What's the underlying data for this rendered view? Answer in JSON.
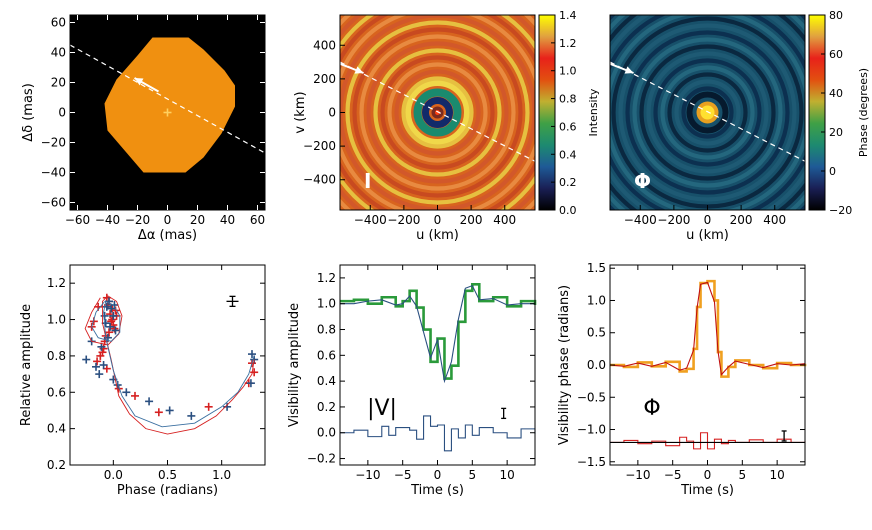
{
  "chart_data": [
    {
      "id": "shape",
      "type": "heatmap",
      "xlabel": "Δα (mas)",
      "ylabel": "Δδ (mas)",
      "xlim": [
        -65,
        65
      ],
      "ylim": [
        -65,
        65
      ],
      "xticks": [
        "−60",
        "−40",
        "−20",
        "0",
        "20",
        "40",
        "60"
      ],
      "yticks": [
        "−60",
        "−40",
        "−20",
        "0",
        "20",
        "40",
        "60"
      ],
      "background": "#000000",
      "fill": "#f09010",
      "outline": [
        [
          -10,
          50
        ],
        [
          14,
          50
        ],
        [
          24,
          42
        ],
        [
          38,
          28
        ],
        [
          45,
          18
        ],
        [
          45,
          4
        ],
        [
          36,
          -14
        ],
        [
          24,
          -30
        ],
        [
          12,
          -40
        ],
        [
          -16,
          -40
        ],
        [
          -28,
          -26
        ],
        [
          -40,
          -12
        ],
        [
          -42,
          6
        ],
        [
          -34,
          22
        ],
        [
          -20,
          38
        ]
      ],
      "direction_line": [
        [
          -65,
          45
        ],
        [
          65,
          -27
        ]
      ],
      "arrow": {
        "from": [
          -6,
          14
        ],
        "to": [
          -22,
          23
        ]
      },
      "center": [
        0,
        0
      ]
    },
    {
      "id": "intensity",
      "type": "heatmap",
      "xlabel": "u (km)",
      "ylabel": "v (km)",
      "xlim": [
        -580,
        580
      ],
      "ylim": [
        -580,
        580
      ],
      "xticks": [
        "−400",
        "−200",
        "0",
        "200",
        "400"
      ],
      "yticks": [
        "−400",
        "−200",
        "0",
        "200",
        "400"
      ],
      "label": "I",
      "colorbar": {
        "label": "Intensity",
        "min": 0.0,
        "max": 1.4,
        "ticks": [
          "0.0",
          "0.2",
          "0.4",
          "0.6",
          "0.8",
          "1.0",
          "1.2",
          "1.4"
        ]
      },
      "colormap": [
        "#000000",
        "#1a1f55",
        "#1e5a96",
        "#1d8a70",
        "#3fa046",
        "#c0b030",
        "#e25010",
        "#e8221a",
        "#e0a040",
        "#ffff00"
      ],
      "direction_line": [
        [
          -580,
          300
        ],
        [
          580,
          -290
        ]
      ],
      "arrow": {
        "from": [
          -580,
          290
        ],
        "to": [
          -440,
          235
        ]
      }
    },
    {
      "id": "phase",
      "type": "heatmap",
      "xlabel": "u (km)",
      "ylabel": "",
      "xlim": [
        -580,
        580
      ],
      "ylim": [
        -580,
        580
      ],
      "xticks": [
        "−400",
        "−200",
        "0",
        "200",
        "400"
      ],
      "label": "Φ",
      "colorbar": {
        "label": "Phase (degrees)",
        "min": -20,
        "max": 80,
        "ticks": [
          "−20",
          "0",
          "20",
          "40",
          "60",
          "80"
        ]
      },
      "colormap": [
        "#000000",
        "#1a1f55",
        "#1e5a96",
        "#1d8a70",
        "#3fa046",
        "#c0b030",
        "#e25010",
        "#e8221a",
        "#e0a040",
        "#ffff00"
      ],
      "direction_line": [
        [
          -580,
          300
        ],
        [
          580,
          -290
        ]
      ],
      "arrow": {
        "from": [
          -580,
          290
        ],
        "to": [
          -440,
          235
        ]
      }
    },
    {
      "id": "amp_phase",
      "type": "scatter",
      "xlabel": "Phase (radians)",
      "ylabel": "Relative amplitude",
      "xlim": [
        -0.4,
        1.4
      ],
      "ylim": [
        0.2,
        1.3
      ],
      "xticks": [
        0.0,
        0.5,
        1.0
      ],
      "yticks": [
        0.2,
        0.4,
        0.6,
        0.8,
        1.0,
        1.2
      ],
      "series": [
        {
          "name": "observed-red",
          "color": "#d62020",
          "x": [
            -0.05,
            -0.03,
            -0.01,
            0.0,
            -0.04,
            0.02,
            -0.06,
            -0.02,
            0.01,
            -0.08,
            -0.1,
            -0.15,
            -0.2,
            -0.12,
            -0.06,
            -0.01,
            -0.04,
            0.03,
            -0.07,
            -0.09,
            -0.18,
            -0.14,
            0.05,
            0.2,
            0.42,
            0.88,
            1.25,
            1.3,
            1.28
          ],
          "y": [
            1.08,
            1.03,
            1.0,
            0.97,
            0.93,
            1.05,
            1.12,
            0.99,
            0.95,
            0.88,
            0.82,
            0.77,
            0.96,
            0.8,
            0.73,
            1.06,
            1.1,
            1.02,
            0.91,
            0.84,
            0.99,
            1.07,
            0.62,
            0.58,
            0.49,
            0.52,
            0.65,
            0.71,
            0.76
          ]
        },
        {
          "name": "observed-blue",
          "color": "#2a4f80",
          "x": [
            -0.04,
            -0.02,
            0.0,
            -0.07,
            0.02,
            -0.05,
            -0.11,
            -0.16,
            -0.25,
            -0.13,
            -0.09,
            -0.06,
            -0.03,
            0.01,
            -0.08,
            -0.2,
            0.0,
            0.04,
            0.12,
            0.33,
            0.52,
            0.72,
            1.05,
            1.27,
            1.3,
            1.28
          ],
          "y": [
            1.1,
            1.06,
            1.02,
            0.98,
            0.94,
            0.9,
            0.85,
            0.74,
            0.78,
            0.7,
            0.75,
            1.07,
            0.96,
            1.08,
            1.02,
            0.88,
            0.67,
            0.64,
            0.6,
            0.55,
            0.5,
            0.47,
            0.52,
            0.65,
            0.78,
            0.81
          ]
        },
        {
          "name": "model-red",
          "color": "#d62020",
          "x": [
            -0.12,
            -0.2,
            -0.26,
            -0.2,
            -0.05,
            0.05,
            0.08,
            0.03,
            -0.05,
            -0.1,
            -0.1,
            -0.02,
            0.05,
            0.15,
            0.3,
            0.5,
            0.75,
            0.95,
            1.1,
            1.2,
            1.28,
            1.3
          ],
          "y": [
            1.12,
            1.04,
            0.95,
            0.88,
            0.86,
            0.92,
            1.02,
            1.1,
            1.13,
            1.1,
            0.98,
            0.78,
            0.58,
            0.48,
            0.4,
            0.37,
            0.4,
            0.47,
            0.56,
            0.63,
            0.7,
            0.78
          ]
        },
        {
          "name": "model-blue",
          "color": "#3a6fa0",
          "x": [
            -0.08,
            -0.16,
            -0.2,
            -0.14,
            -0.02,
            0.06,
            0.06,
            0.0,
            -0.07,
            -0.09,
            -0.07,
            0.0,
            0.08,
            0.2,
            0.45,
            0.75,
            1.0,
            1.15,
            1.25,
            1.3
          ],
          "y": [
            1.1,
            1.04,
            0.96,
            0.9,
            0.88,
            0.93,
            1.02,
            1.08,
            1.1,
            1.04,
            0.9,
            0.72,
            0.58,
            0.47,
            0.41,
            0.43,
            0.52,
            0.6,
            0.7,
            0.8
          ]
        }
      ],
      "error_marker": {
        "x": 1.1,
        "y": 1.1
      }
    },
    {
      "id": "vis_amp",
      "type": "line",
      "xlabel": "Time (s)",
      "ylabel": "Visibility amplitude",
      "xlim": [
        -14,
        14
      ],
      "ylim": [
        -0.25,
        1.3
      ],
      "xticks": [
        -10,
        -5,
        0,
        5,
        10
      ],
      "yticks": [
        -0.2,
        0.0,
        0.2,
        0.4,
        0.6,
        0.8,
        1.0,
        1.2
      ],
      "annotation": "|V|",
      "series": [
        {
          "name": "data",
          "color": "#2a9a3a",
          "x": [
            -14,
            -12,
            -10,
            -8,
            -6,
            -5,
            -4,
            -3,
            -2,
            -1,
            0,
            1,
            2,
            3,
            4,
            5,
            6,
            8,
            10,
            12,
            14
          ],
          "y": [
            1.02,
            1.03,
            1.0,
            1.05,
            0.98,
            1.02,
            1.1,
            0.97,
            0.8,
            0.55,
            0.73,
            0.42,
            0.52,
            0.86,
            1.1,
            1.15,
            1.02,
            1.05,
            0.98,
            1.02,
            0.99
          ]
        },
        {
          "name": "model",
          "color": "#2a4f80",
          "x": [
            -14,
            -12,
            -10,
            -8,
            -6,
            -5,
            -4,
            -3,
            -2,
            -1,
            0,
            1,
            2,
            3,
            4,
            5,
            6,
            8,
            10,
            12,
            14
          ],
          "y": [
            1.0,
            1.0,
            1.02,
            1.03,
            0.99,
            1.0,
            1.06,
            0.98,
            0.78,
            0.58,
            0.72,
            0.4,
            0.55,
            0.88,
            1.12,
            1.14,
            1.03,
            1.04,
            0.99,
            1.0,
            1.0
          ]
        },
        {
          "name": "residual",
          "color": "#2a4f80",
          "x": [
            -14,
            -12,
            -10,
            -8,
            -7,
            -6,
            -4,
            -3,
            -2,
            -1,
            0,
            1,
            2,
            3,
            4,
            5,
            6,
            8,
            10,
            12,
            14
          ],
          "y": [
            0.0,
            0.02,
            -0.03,
            0.05,
            -0.02,
            0.04,
            0.02,
            -0.05,
            0.13,
            0.05,
            0.06,
            -0.14,
            0.03,
            -0.04,
            0.06,
            -0.02,
            0.04,
            0.0,
            -0.04,
            0.03,
            -0.01
          ]
        }
      ],
      "error_marker": {
        "x": 9.5,
        "y": 0.15
      }
    },
    {
      "id": "vis_phase",
      "type": "line",
      "xlabel": "Time (s)",
      "ylabel": "Visibility phase (radians)",
      "xlim": [
        -14,
        14
      ],
      "ylim": [
        -1.55,
        1.55
      ],
      "xticks": [
        -10,
        -5,
        0,
        5,
        10
      ],
      "yticks": [
        -1.5,
        -1.0,
        -0.5,
        0.0,
        0.5,
        1.0,
        1.5
      ],
      "annotation": "Φ",
      "series": [
        {
          "name": "data",
          "color": "#f0a020",
          "x": [
            -14,
            -12,
            -10,
            -8,
            -6,
            -4,
            -3,
            -2,
            -1.5,
            -1,
            0,
            1,
            1.5,
            2,
            3,
            4,
            6,
            8,
            10,
            12,
            14
          ],
          "y": [
            0.0,
            -0.03,
            0.04,
            -0.02,
            0.05,
            -0.1,
            -0.06,
            0.25,
            0.9,
            1.27,
            1.3,
            1.0,
            0.2,
            -0.18,
            -0.03,
            0.07,
            0.0,
            -0.05,
            0.03,
            0.0,
            0.02
          ]
        },
        {
          "name": "model",
          "color": "#c01010",
          "x": [
            -14,
            -12,
            -10,
            -8,
            -6,
            -4,
            -3,
            -2,
            -1.5,
            -1,
            0,
            1,
            1.5,
            2,
            3,
            4,
            6,
            8,
            10,
            12,
            14
          ],
          "y": [
            0.0,
            -0.02,
            0.03,
            -0.02,
            0.04,
            -0.08,
            -0.05,
            0.23,
            0.88,
            1.25,
            1.28,
            0.98,
            0.22,
            -0.15,
            -0.03,
            0.06,
            0.01,
            -0.04,
            0.02,
            0.0,
            0.02
          ]
        },
        {
          "name": "residual",
          "color": "#d62020",
          "x": [
            -14,
            -12,
            -10,
            -8,
            -6,
            -4,
            -3,
            -2,
            -1,
            0,
            1,
            2,
            3,
            4,
            6,
            8,
            10,
            12,
            14
          ],
          "y": [
            -1.2,
            -1.17,
            -1.22,
            -1.18,
            -1.25,
            -1.12,
            -1.18,
            -1.3,
            -1.05,
            -1.3,
            -1.15,
            -1.22,
            -1.17,
            -1.2,
            -1.16,
            -1.2,
            -1.15,
            -1.2,
            -1.18
          ]
        },
        {
          "name": "zero-line",
          "color": "#000000",
          "x": [
            -14,
            14
          ],
          "y": [
            -1.2,
            -1.2
          ]
        }
      ],
      "error_marker": {
        "x": 11,
        "y": -1.1
      }
    }
  ]
}
